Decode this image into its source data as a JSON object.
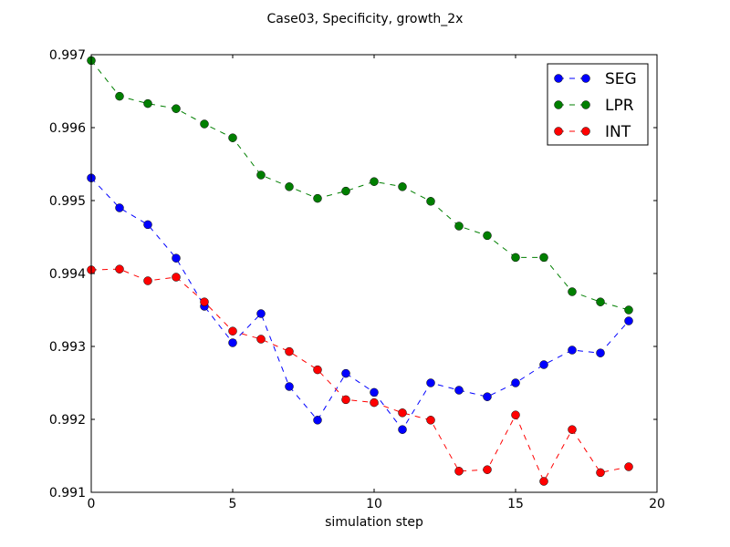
{
  "chart_data": {
    "type": "line",
    "title": "Case03, Specificity, growth_2x",
    "xlabel": "simulation step",
    "ylabel": "",
    "xlim": [
      0,
      20
    ],
    "ylim": [
      0.991,
      0.997
    ],
    "xticks": [
      0,
      5,
      10,
      15,
      20
    ],
    "xtick_labels": [
      "0",
      "5",
      "10",
      "15",
      "20"
    ],
    "yticks": [
      0.991,
      0.992,
      0.993,
      0.994,
      0.995,
      0.996,
      0.997
    ],
    "ytick_labels": [
      "0.991",
      "0.992",
      "0.993",
      "0.994",
      "0.995",
      "0.996",
      "0.997"
    ],
    "grid": false,
    "legend_position": "top-right",
    "x": [
      0,
      1,
      2,
      3,
      4,
      5,
      6,
      7,
      8,
      9,
      10,
      11,
      12,
      13,
      14,
      15,
      16,
      17,
      18,
      19
    ],
    "series": [
      {
        "name": "SEG",
        "color": "#0000ff",
        "linestyle": "dashed",
        "marker": "circle",
        "values": [
          0.99531,
          0.9949,
          0.99467,
          0.99421,
          0.99355,
          0.99305,
          0.99345,
          0.99245,
          0.99199,
          0.99263,
          0.99237,
          0.99186,
          0.9925,
          0.9924,
          0.99231,
          0.9925,
          0.99275,
          0.99295,
          0.99291,
          0.99335
        ]
      },
      {
        "name": "LPR",
        "color": "#007f00",
        "linestyle": "dashed",
        "marker": "circle",
        "values": [
          0.99692,
          0.99643,
          0.99633,
          0.99626,
          0.99605,
          0.99586,
          0.99535,
          0.99519,
          0.99503,
          0.99513,
          0.99526,
          0.99519,
          0.99499,
          0.99465,
          0.99452,
          0.99422,
          0.99422,
          0.99375,
          0.99361,
          0.9935
        ]
      },
      {
        "name": "INT",
        "color": "#ff0000",
        "linestyle": "dashed",
        "marker": "circle",
        "values": [
          0.99405,
          0.99406,
          0.9939,
          0.99395,
          0.99361,
          0.99321,
          0.9931,
          0.99293,
          0.99268,
          0.99227,
          0.99223,
          0.99209,
          0.99199,
          0.99129,
          0.99131,
          0.99206,
          0.99115,
          0.99186,
          0.99127,
          0.99135
        ]
      }
    ]
  }
}
